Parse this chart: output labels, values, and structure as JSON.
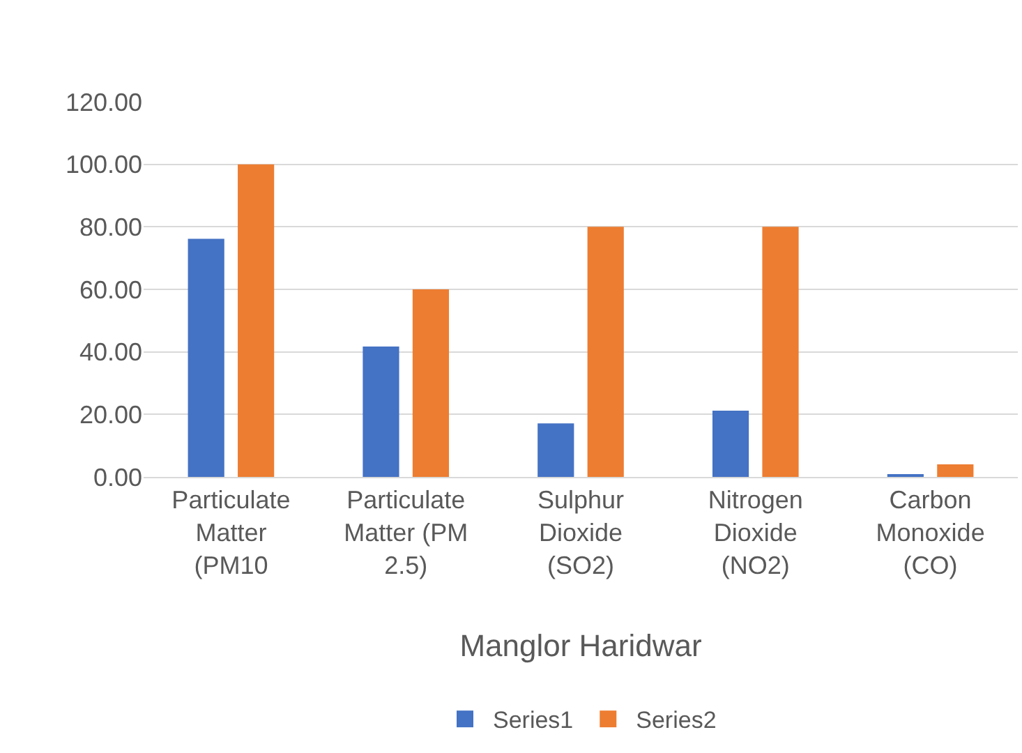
{
  "chart_data": {
    "type": "bar",
    "categories": [
      "Particulate Matter (PM10",
      "Particulate Matter (PM 2.5)",
      "Sulphur Dioxide (SO2)",
      "Nitrogen Dioxide (NO2)",
      "Carbon Monoxide (CO)"
    ],
    "xlabel": "Manglor Haridwar",
    "series": [
      {
        "name": "Series1",
        "color": "#4472c4",
        "values": [
          76.2,
          41.7,
          17.1,
          21.2,
          0.6
        ]
      },
      {
        "name": "Series2",
        "color": "#ed7d31",
        "values": [
          100,
          60,
          80,
          80,
          4
        ]
      }
    ],
    "ylim": [
      0,
      120
    ],
    "yticks": [
      {
        "value": 0,
        "label": "0.00"
      },
      {
        "value": 20,
        "label": "20.00"
      },
      {
        "value": 40,
        "label": "40.00"
      },
      {
        "value": 60,
        "label": "60.00"
      },
      {
        "value": 80,
        "label": "80.00"
      },
      {
        "value": 100,
        "label": "100.00"
      },
      {
        "value": 120,
        "label": "120.00"
      }
    ],
    "grid": "y",
    "legend": "bottom"
  }
}
